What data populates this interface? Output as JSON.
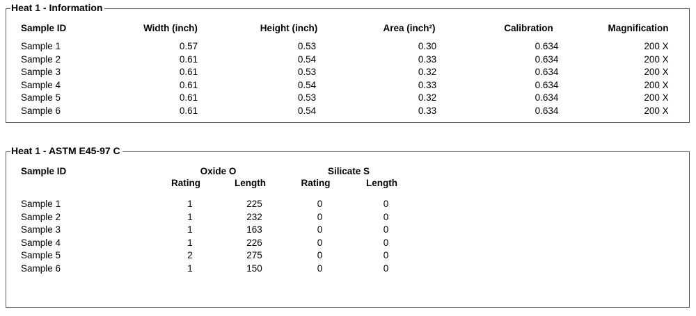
{
  "ui_colors": {
    "panel_border": "#555555",
    "background": "#ffffff",
    "text": "#000000"
  },
  "panels": [
    {
      "title": "Heat 1 - Information",
      "columns": [
        "Sample ID",
        "Width (inch)",
        "Height (inch)",
        "Area (inch²)",
        "Calibration",
        "Magnification"
      ],
      "rows": [
        {
          "id": "Sample 1",
          "width": "0.57",
          "height": "0.53",
          "area": "0.30",
          "calibration": "0.634",
          "magnification": "200 X"
        },
        {
          "id": "Sample 2",
          "width": "0.61",
          "height": "0.54",
          "area": "0.33",
          "calibration": "0.634",
          "magnification": "200 X"
        },
        {
          "id": "Sample 3",
          "width": "0.61",
          "height": "0.53",
          "area": "0.32",
          "calibration": "0.634",
          "magnification": "200 X"
        },
        {
          "id": "Sample 4",
          "width": "0.61",
          "height": "0.54",
          "area": "0.33",
          "calibration": "0.634",
          "magnification": "200 X"
        },
        {
          "id": "Sample 5",
          "width": "0.61",
          "height": "0.53",
          "area": "0.32",
          "calibration": "0.634",
          "magnification": "200 X"
        },
        {
          "id": "Sample 6",
          "width": "0.61",
          "height": "0.54",
          "area": "0.33",
          "calibration": "0.634",
          "magnification": "200 X"
        }
      ]
    },
    {
      "title": "Heat 1 - ASTM E45-97 C",
      "sample_id_header": "Sample ID",
      "groups": [
        {
          "label": "Oxide O",
          "sub_columns": [
            "Rating",
            "Length"
          ]
        },
        {
          "label": "Silicate S",
          "sub_columns": [
            "Rating",
            "Length"
          ]
        }
      ],
      "rows": [
        {
          "id": "Sample 1",
          "oxide_rating": "1",
          "oxide_length": "225",
          "silicate_rating": "0",
          "silicate_length": "0"
        },
        {
          "id": "Sample 2",
          "oxide_rating": "1",
          "oxide_length": "232",
          "silicate_rating": "0",
          "silicate_length": "0"
        },
        {
          "id": "Sample 3",
          "oxide_rating": "1",
          "oxide_length": "163",
          "silicate_rating": "0",
          "silicate_length": "0"
        },
        {
          "id": "Sample 4",
          "oxide_rating": "1",
          "oxide_length": "226",
          "silicate_rating": "0",
          "silicate_length": "0"
        },
        {
          "id": "Sample 5",
          "oxide_rating": "2",
          "oxide_length": "275",
          "silicate_rating": "0",
          "silicate_length": "0"
        },
        {
          "id": "Sample 6",
          "oxide_rating": "1",
          "oxide_length": "150",
          "silicate_rating": "0",
          "silicate_length": "0"
        }
      ]
    }
  ]
}
